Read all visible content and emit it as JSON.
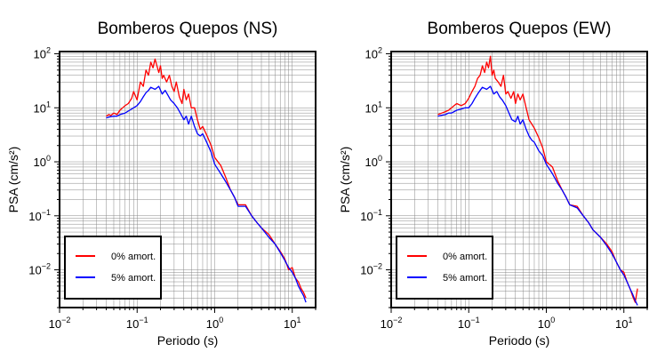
{
  "chart_data": [
    {
      "type": "line",
      "title": "Bomberos Quepos (NS)",
      "xlabel": "Periodo (s)",
      "ylabel": "PSA (cm/s²)",
      "xscale": "log",
      "yscale": "log",
      "xlim": [
        0.01,
        20
      ],
      "ylim": [
        0.002,
        110
      ],
      "grid": true,
      "legend_position": "bottom-left",
      "x_ticks": [
        {
          "base": "10",
          "exp": "−2"
        },
        {
          "base": "10",
          "exp": "−1"
        },
        {
          "base": "10",
          "exp": "0"
        },
        {
          "base": "10",
          "exp": "1"
        }
      ],
      "y_ticks": [
        {
          "base": "10",
          "exp": "−2"
        },
        {
          "base": "10",
          "exp": "−1"
        },
        {
          "base": "10",
          "exp": "0"
        },
        {
          "base": "10",
          "exp": "1"
        },
        {
          "base": "10",
          "exp": "2"
        }
      ],
      "series": [
        {
          "name": "0% amort.",
          "color": "#ff0000",
          "x": [
            0.04,
            0.043,
            0.046,
            0.05,
            0.055,
            0.06,
            0.065,
            0.07,
            0.077,
            0.085,
            0.09,
            0.1,
            0.11,
            0.12,
            0.13,
            0.14,
            0.15,
            0.16,
            0.17,
            0.18,
            0.19,
            0.2,
            0.21,
            0.22,
            0.24,
            0.26,
            0.28,
            0.3,
            0.32,
            0.35,
            0.38,
            0.4,
            0.43,
            0.46,
            0.5,
            0.55,
            0.6,
            0.65,
            0.7,
            0.8,
            0.9,
            1.0,
            1.2,
            1.4,
            1.6,
            1.8,
            2.0,
            2.5,
            3.0,
            3.5,
            4.0,
            5.0,
            6.0,
            7.0,
            8.0,
            9.0,
            10.0,
            11.0,
            12.0,
            13.0,
            14.0,
            15.0
          ],
          "y": [
            7.0,
            7.5,
            7.2,
            8.0,
            7.5,
            9.0,
            10.0,
            11.0,
            12.0,
            15.0,
            20.0,
            14.0,
            30.0,
            25.0,
            50.0,
            40.0,
            70.0,
            55.0,
            80.0,
            60.0,
            45.0,
            60.0,
            35.0,
            40.0,
            30.0,
            40.0,
            25.0,
            20.0,
            30.0,
            16.0,
            12.0,
            22.0,
            14.0,
            18.0,
            10.0,
            10.0,
            6.0,
            4.0,
            4.5,
            3.0,
            2.0,
            1.2,
            0.85,
            0.5,
            0.3,
            0.22,
            0.16,
            0.16,
            0.1,
            0.075,
            0.06,
            0.045,
            0.03,
            0.022,
            0.016,
            0.01,
            0.011,
            0.007,
            0.006,
            0.0045,
            0.0038,
            0.003
          ]
        },
        {
          "name": "5% amort.",
          "color": "#0000ff",
          "x": [
            0.04,
            0.045,
            0.05,
            0.055,
            0.06,
            0.07,
            0.08,
            0.09,
            0.1,
            0.11,
            0.12,
            0.13,
            0.14,
            0.15,
            0.17,
            0.19,
            0.21,
            0.23,
            0.25,
            0.27,
            0.3,
            0.33,
            0.36,
            0.4,
            0.43,
            0.46,
            0.5,
            0.55,
            0.6,
            0.65,
            0.7,
            0.8,
            0.9,
            1.0,
            1.2,
            1.4,
            1.6,
            1.8,
            2.0,
            2.5,
            3.0,
            3.5,
            4.0,
            5.0,
            6.0,
            7.0,
            8.0,
            9.0,
            10.0,
            11.0,
            12.0,
            13.0,
            14.0,
            15.0
          ],
          "y": [
            6.5,
            6.8,
            7.0,
            7.0,
            7.5,
            8.0,
            9.0,
            10.0,
            11.0,
            13.0,
            16.0,
            19.0,
            21.0,
            24.0,
            22.0,
            25.0,
            18.0,
            21.0,
            17.0,
            14.0,
            12.0,
            10.0,
            8.0,
            6.0,
            7.0,
            5.0,
            7.0,
            4.5,
            3.3,
            3.0,
            3.3,
            2.2,
            1.5,
            0.9,
            0.6,
            0.42,
            0.3,
            0.22,
            0.15,
            0.15,
            0.1,
            0.075,
            0.06,
            0.04,
            0.03,
            0.021,
            0.015,
            0.011,
            0.009,
            0.007,
            0.005,
            0.004,
            0.0033,
            0.0025
          ]
        }
      ]
    },
    {
      "type": "line",
      "title": "Bomberos Quepos (EW)",
      "xlabel": "Periodo (s)",
      "ylabel": "PSA (cm/s²)",
      "xscale": "log",
      "yscale": "log",
      "xlim": [
        0.01,
        20
      ],
      "ylim": [
        0.002,
        110
      ],
      "grid": true,
      "legend_position": "bottom-left",
      "x_ticks": [
        {
          "base": "10",
          "exp": "−2"
        },
        {
          "base": "10",
          "exp": "−1"
        },
        {
          "base": "10",
          "exp": "0"
        },
        {
          "base": "10",
          "exp": "1"
        }
      ],
      "y_ticks": [
        {
          "base": "10",
          "exp": "−2"
        },
        {
          "base": "10",
          "exp": "−1"
        },
        {
          "base": "10",
          "exp": "0"
        },
        {
          "base": "10",
          "exp": "1"
        },
        {
          "base": "10",
          "exp": "2"
        }
      ],
      "series": [
        {
          "name": "0% amort.",
          "color": "#ff0000",
          "x": [
            0.04,
            0.045,
            0.05,
            0.055,
            0.06,
            0.065,
            0.07,
            0.08,
            0.09,
            0.1,
            0.11,
            0.12,
            0.13,
            0.14,
            0.15,
            0.16,
            0.17,
            0.18,
            0.19,
            0.2,
            0.21,
            0.22,
            0.24,
            0.26,
            0.28,
            0.3,
            0.32,
            0.35,
            0.38,
            0.4,
            0.43,
            0.46,
            0.5,
            0.55,
            0.6,
            0.65,
            0.7,
            0.8,
            0.9,
            1.0,
            1.2,
            1.4,
            1.6,
            1.8,
            2.0,
            2.5,
            3.0,
            3.5,
            4.0,
            5.0,
            6.0,
            7.0,
            8.0,
            9.0,
            10.0,
            11.0,
            12.0,
            13.0,
            14.0,
            15.0
          ],
          "y": [
            7.5,
            8.0,
            8.5,
            9.0,
            10.0,
            11.0,
            12.0,
            11.0,
            12.0,
            15.0,
            20.0,
            25.0,
            35.0,
            40.0,
            60.0,
            45.0,
            70.0,
            55.0,
            90.0,
            40.0,
            50.0,
            35.0,
            30.0,
            25.0,
            40.0,
            18.0,
            20.0,
            15.0,
            20.0,
            12.0,
            18.0,
            14.0,
            18.0,
            10.0,
            6.0,
            5.0,
            4.2,
            2.8,
            1.8,
            1.0,
            0.8,
            0.45,
            0.3,
            0.22,
            0.16,
            0.15,
            0.1,
            0.075,
            0.055,
            0.04,
            0.03,
            0.022,
            0.014,
            0.01,
            0.009,
            0.006,
            0.0045,
            0.0032,
            0.0025,
            0.0045
          ]
        },
        {
          "name": "5% amort.",
          "color": "#0000ff",
          "x": [
            0.04,
            0.045,
            0.05,
            0.055,
            0.06,
            0.07,
            0.08,
            0.09,
            0.1,
            0.11,
            0.12,
            0.13,
            0.14,
            0.15,
            0.17,
            0.19,
            0.21,
            0.23,
            0.25,
            0.27,
            0.3,
            0.33,
            0.36,
            0.4,
            0.43,
            0.46,
            0.5,
            0.55,
            0.6,
            0.65,
            0.7,
            0.8,
            0.9,
            1.0,
            1.2,
            1.4,
            1.6,
            1.8,
            2.0,
            2.5,
            3.0,
            3.5,
            4.0,
            5.0,
            6.0,
            7.0,
            8.0,
            9.0,
            10.0,
            11.0,
            12.0,
            13.0,
            14.0,
            15.0
          ],
          "y": [
            7.0,
            7.3,
            7.5,
            8.0,
            8.0,
            9.0,
            9.5,
            10.0,
            10.0,
            12.0,
            15.0,
            18.0,
            21.0,
            24.0,
            22.0,
            25.0,
            18.0,
            20.0,
            16.0,
            14.0,
            11.0,
            8.0,
            6.0,
            5.5,
            7.0,
            5.0,
            6.0,
            4.0,
            3.0,
            2.5,
            2.3,
            1.6,
            1.3,
            0.9,
            0.6,
            0.4,
            0.3,
            0.22,
            0.16,
            0.14,
            0.1,
            0.075,
            0.055,
            0.04,
            0.028,
            0.02,
            0.014,
            0.01,
            0.008,
            0.006,
            0.0045,
            0.0035,
            0.0027,
            0.0022
          ]
        }
      ]
    }
  ]
}
